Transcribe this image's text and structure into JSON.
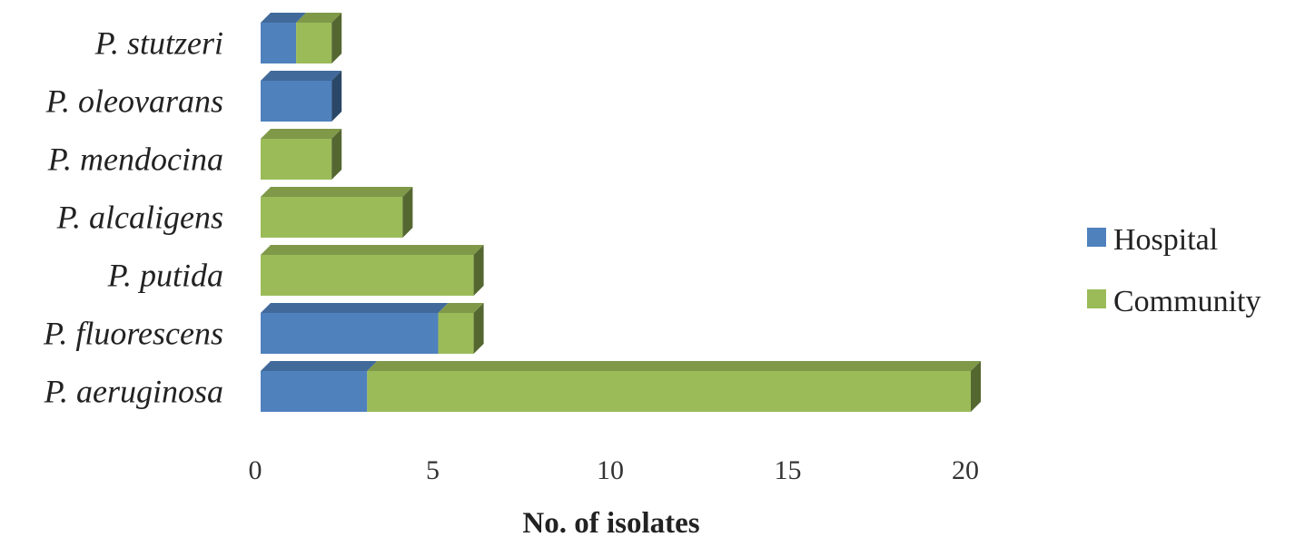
{
  "chart_data": {
    "type": "bar",
    "orientation": "horizontal",
    "stacked": true,
    "three_d": true,
    "categories": [
      "P. stutzeri",
      "P. oleovarans",
      "P. mendocina",
      "P. alcaligens",
      "P. putida",
      "P. fluorescens",
      "P. aeruginosa"
    ],
    "series": [
      {
        "name": "Hospital",
        "color": "#4f81bd",
        "values": [
          1,
          2,
          0,
          0,
          0,
          5,
          3
        ]
      },
      {
        "name": "Community",
        "color": "#9bbb59",
        "values": [
          1,
          0,
          2,
          4,
          6,
          1,
          17
        ]
      }
    ],
    "xlabel": "No. of isolates",
    "xlim": [
      0,
      20
    ],
    "xticks": [
      0,
      5,
      10,
      15,
      20
    ],
    "grid": false,
    "legend": {
      "position": "right",
      "entries": [
        "Hospital",
        "Community"
      ]
    }
  }
}
